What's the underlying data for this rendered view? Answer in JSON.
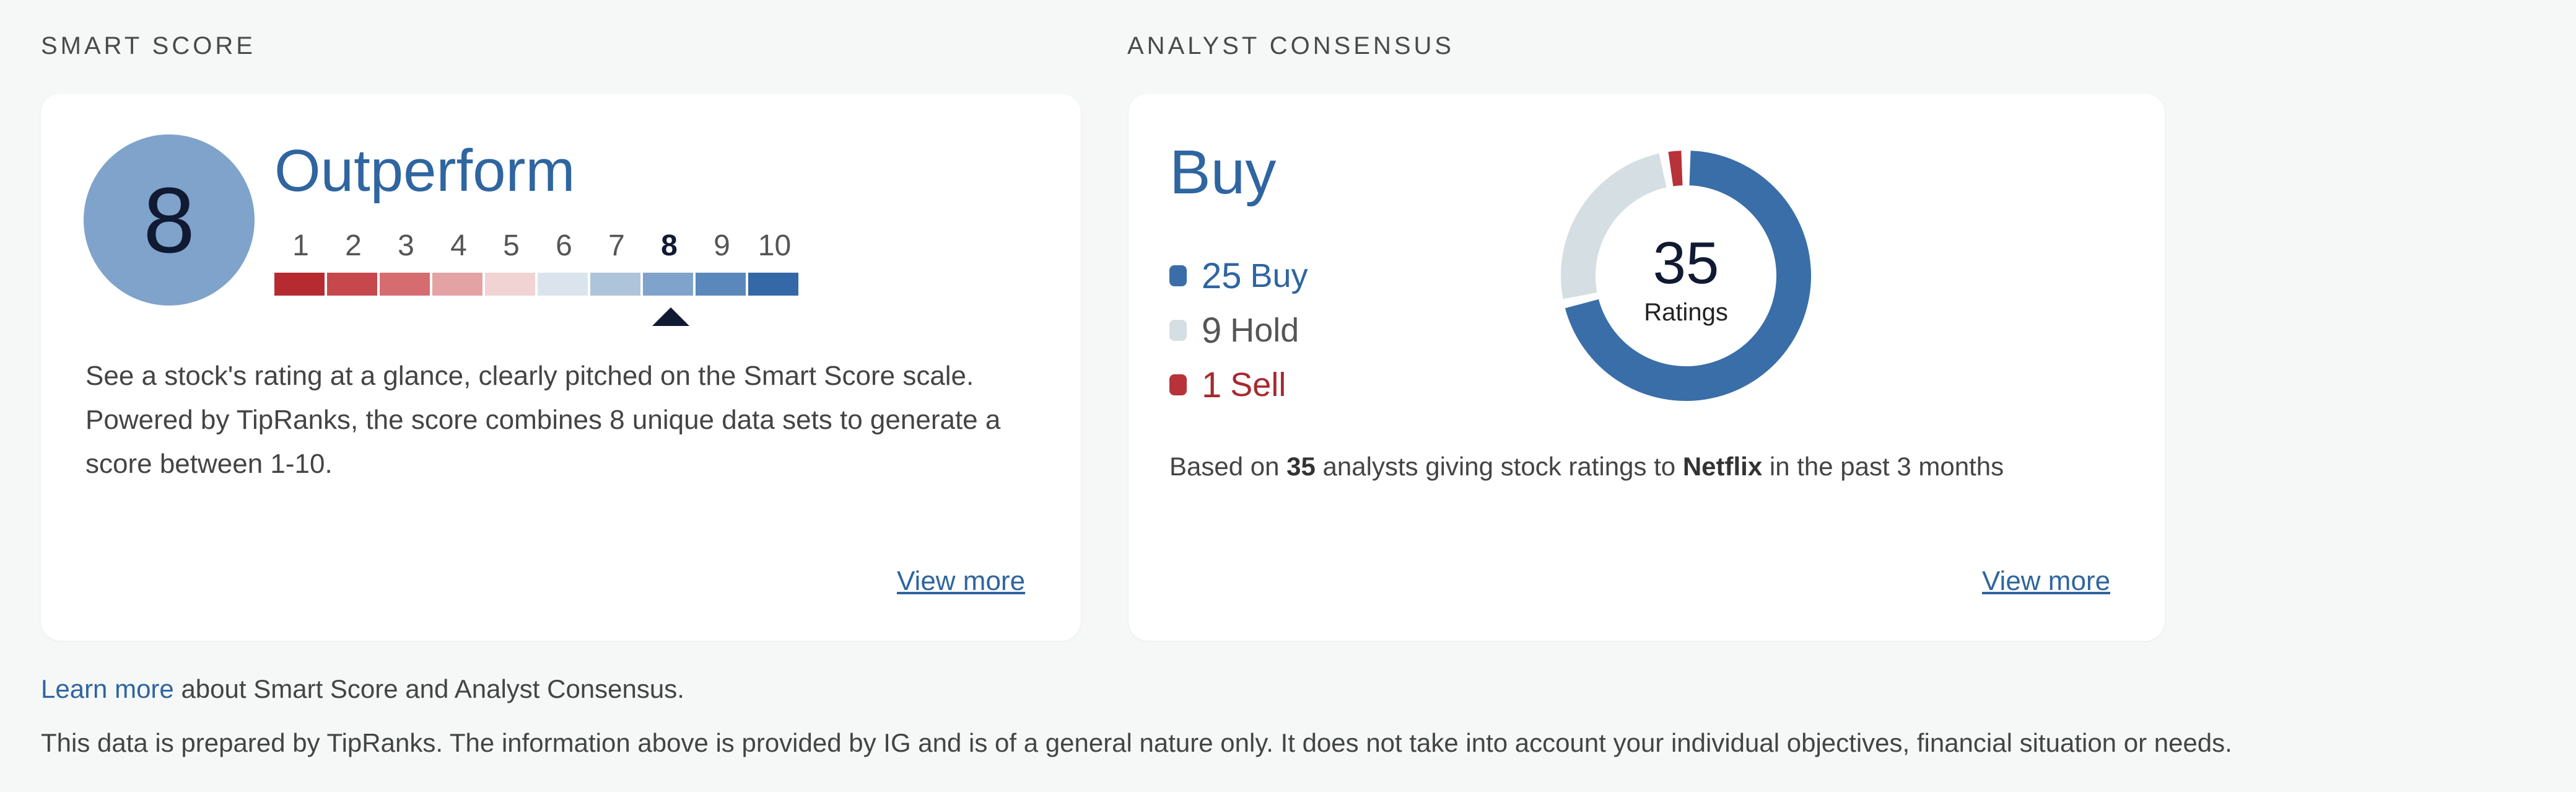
{
  "smart_score": {
    "section_label": "SMART SCORE",
    "score": "8",
    "rating": "Outperform",
    "scale": [
      "1",
      "2",
      "3",
      "4",
      "5",
      "6",
      "7",
      "8",
      "9",
      "10"
    ],
    "selected_index": 7,
    "scale_colors": [
      "#b52b30",
      "#c6484c",
      "#d56d70",
      "#e3a2a4",
      "#f1d3d4",
      "#dbe4ec",
      "#aec4db",
      "#7fa3cb",
      "#5a88bb",
      "#3468a6"
    ],
    "description": "See a stock's rating at a glance, clearly pitched on the Smart Score scale. Powered by TipRanks, the score combines 8 unique data sets to generate a score between 1-10.",
    "view_more": "View more"
  },
  "analyst_consensus": {
    "section_label": "ANALYST CONSENSUS",
    "consensus": "Buy",
    "legend": [
      {
        "count": "25",
        "label": "Buy",
        "color": "#3a6ea8",
        "text_color": "#2f65a0"
      },
      {
        "count": "9",
        "label": "Hold",
        "color": "#d5dfe3",
        "text_color": "#555555"
      },
      {
        "count": "1",
        "label": "Sell",
        "color": "#b8323a",
        "text_color": "#a52a30"
      }
    ],
    "total": "35",
    "total_label": "Ratings",
    "based_prefix": "Based on ",
    "based_count": "35",
    "based_middle": " analysts giving stock ratings to ",
    "based_company": "Netflix",
    "based_suffix": " in the past 3 months",
    "view_more": "View more"
  },
  "footer": {
    "learn_link": "Learn more",
    "learn_rest": " about Smart Score and Analyst Consensus.",
    "disclaimer": "This data is prepared by TipRanks. The information above is provided by IG and is of a general nature only. It does not take into account your individual objectives, financial situation or needs."
  }
}
